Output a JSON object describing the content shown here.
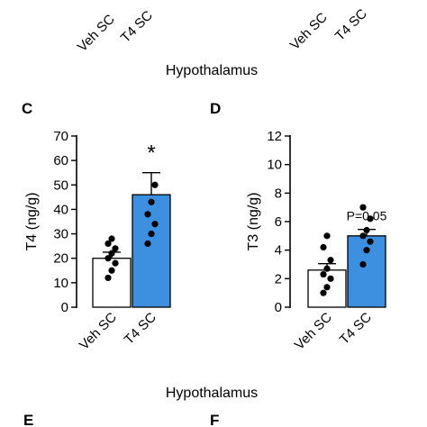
{
  "top_row": {
    "left_ticks": [
      "Veh SC",
      "T4 SC"
    ],
    "right_ticks": [
      "Veh SC",
      "T4 SC"
    ],
    "region_label": "Hypothalamus"
  },
  "bottom": {
    "region_label": "Hypothalamus",
    "panel_e": "E",
    "panel_f": "F"
  },
  "chart_data": [
    {
      "panel": "C",
      "type": "bar",
      "ylabel": "T4 (ng/g)",
      "ylim": [
        0,
        70
      ],
      "yticks": [
        0,
        10,
        20,
        30,
        40,
        50,
        60,
        70
      ],
      "categories": [
        "Veh SC",
        "T4 SC"
      ],
      "values": [
        20,
        46
      ],
      "error": [
        2.5,
        9
      ],
      "colors": [
        "#ffffff",
        "#3d8fe0"
      ],
      "points": [
        [
          12,
          15,
          18,
          20,
          22,
          24,
          26,
          28
        ],
        [
          26,
          30,
          34,
          38,
          43,
          50
        ]
      ],
      "annotation": "*"
    },
    {
      "panel": "D",
      "type": "bar",
      "ylabel": "T3 (ng/g)",
      "ylim": [
        0,
        12
      ],
      "yticks": [
        0,
        2,
        4,
        6,
        8,
        10,
        12
      ],
      "categories": [
        "Veh SC",
        "T4 SC"
      ],
      "values": [
        2.6,
        5.0
      ],
      "error": [
        0.45,
        0.45
      ],
      "colors": [
        "#ffffff",
        "#3d8fe0"
      ],
      "points": [
        [
          1.0,
          1.4,
          2.0,
          2.3,
          2.7,
          3.3,
          4.2,
          5.0
        ],
        [
          3.0,
          4.0,
          4.6,
          5.0,
          5.4,
          6.2,
          7.0
        ]
      ],
      "annotation": "P=0.05"
    }
  ]
}
